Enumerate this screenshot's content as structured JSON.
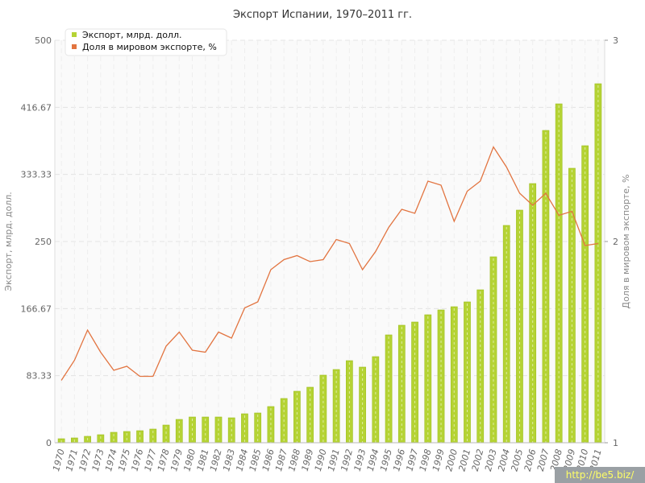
{
  "chart_data": {
    "type": "bar+line",
    "title": "Экспорт Испании, 1970–2011 гг.",
    "ylabel_left": "Экспорт, млрд. долл.",
    "ylabel_right": "Доля в мировом экспорте, %",
    "ylim_left": [
      0,
      500
    ],
    "ylim_right": [
      1,
      3
    ],
    "yticks_left": [
      "0",
      "83.33",
      "166.67",
      "250",
      "333.33",
      "416.67",
      "500"
    ],
    "yticks_right": [
      "1",
      "2",
      "3"
    ],
    "grid": true,
    "legend_position": "top-left",
    "categories": [
      "1970",
      "1971",
      "1972",
      "1973",
      "1974",
      "1975",
      "1976",
      "1977",
      "1978",
      "1979",
      "1980",
      "1981",
      "1982",
      "1983",
      "1984",
      "1985",
      "1986",
      "1987",
      "1988",
      "1989",
      "1990",
      "1991",
      "1992",
      "1993",
      "1994",
      "1995",
      "1996",
      "1997",
      "1998",
      "1999",
      "2000",
      "2001",
      "2002",
      "2003",
      "2004",
      "2005",
      "2006",
      "2007",
      "2008",
      "2009",
      "2010",
      "2011"
    ],
    "series": [
      {
        "name": "Экспорт, млрд. долл.",
        "type": "bar",
        "axis": "left",
        "color": "#b5d334",
        "values": [
          5,
          6,
          8,
          10,
          13,
          14,
          15,
          17,
          22,
          29,
          32,
          32,
          32,
          31,
          36,
          37,
          45,
          55,
          64,
          69,
          84,
          91,
          102,
          94,
          107,
          134,
          146,
          150,
          159,
          165,
          169,
          175,
          190,
          231,
          270,
          289,
          322,
          388,
          421,
          341,
          369,
          446
        ]
      },
      {
        "name": "Доля в мировом экспорте, %",
        "type": "line",
        "axis": "right",
        "color": "#e27440",
        "values": [
          1.31,
          1.41,
          1.56,
          1.45,
          1.36,
          1.38,
          1.33,
          1.33,
          1.48,
          1.55,
          1.46,
          1.45,
          1.55,
          1.52,
          1.67,
          1.7,
          1.86,
          1.91,
          1.93,
          1.9,
          1.91,
          2.01,
          1.99,
          1.86,
          1.95,
          2.07,
          2.16,
          2.14,
          2.3,
          2.28,
          2.1,
          2.25,
          2.3,
          2.47,
          2.37,
          2.24,
          2.18,
          2.24,
          2.13,
          2.15,
          1.98,
          1.99
        ]
      }
    ]
  },
  "watermark": "http://be5.biz/"
}
